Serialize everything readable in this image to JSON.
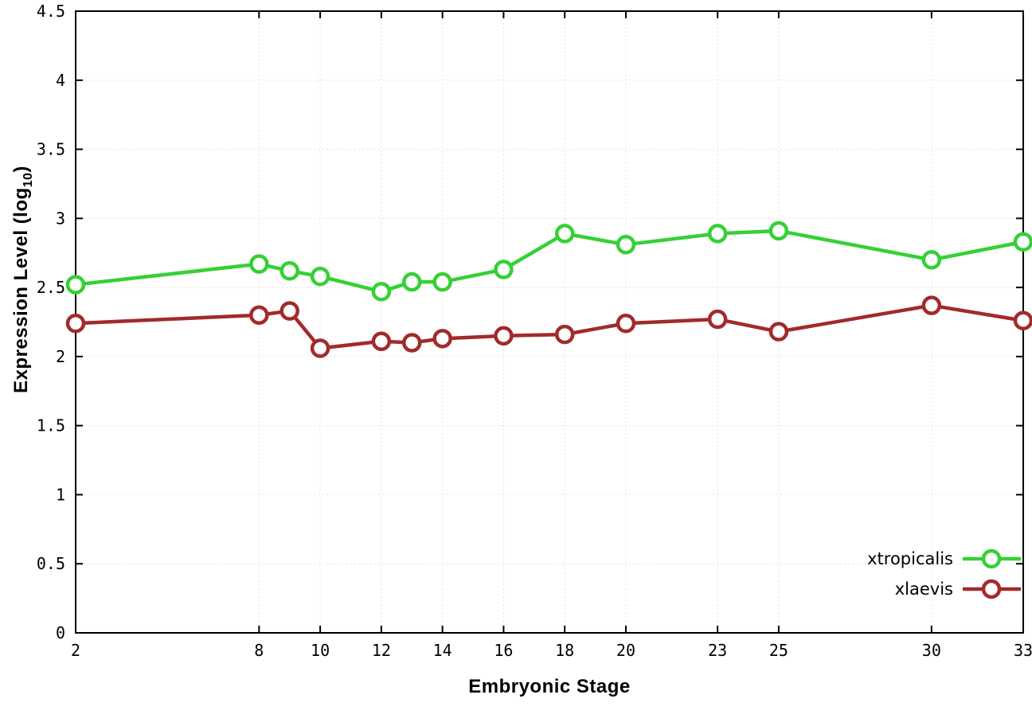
{
  "figure": {
    "xlabel": "Embryonic Stage",
    "ylabel_main": "Expression Level (log",
    "ylabel_sub": "10",
    "ylabel_close": ")"
  },
  "colors": {
    "background": "#ffffff",
    "frame": "#000000",
    "grid": "#e4e4e4",
    "xtropicalis": "#35d035",
    "xlaevis": "#a32a2a"
  },
  "chart_data": {
    "type": "line",
    "title": "",
    "xlabel": "Embryonic Stage",
    "ylabel": "Expression Level (log10)",
    "x": [
      2,
      8,
      9,
      10,
      12,
      13,
      14,
      16,
      18,
      20,
      23,
      25,
      30,
      33
    ],
    "series": [
      {
        "name": "xtropicalis",
        "color": "#35d035",
        "values": [
          2.52,
          2.67,
          2.62,
          2.58,
          2.47,
          2.54,
          2.54,
          2.63,
          2.89,
          2.81,
          2.89,
          2.91,
          2.7,
          2.83
        ]
      },
      {
        "name": "xlaevis",
        "color": "#a32a2a",
        "values": [
          2.24,
          2.3,
          2.33,
          2.06,
          2.11,
          2.1,
          2.13,
          2.15,
          2.16,
          2.24,
          2.27,
          2.18,
          2.37,
          2.26
        ]
      }
    ],
    "xlim": [
      2,
      33
    ],
    "ylim": [
      0,
      4.5
    ],
    "xticks": [
      2,
      8,
      10,
      12,
      14,
      16,
      18,
      20,
      23,
      25,
      30,
      33
    ],
    "xtick_labels": [
      "2",
      "8",
      "10",
      "12",
      "14",
      "16",
      "18",
      "20",
      "23",
      "25",
      "30",
      "33"
    ],
    "yticks": [
      0,
      0.5,
      1,
      1.5,
      2,
      2.5,
      3,
      3.5,
      4,
      4.5
    ],
    "ytick_labels": [
      "0",
      "0.5",
      "1",
      "1.5",
      "2",
      "2.5",
      "3",
      "3.5",
      "4",
      "4.5"
    ],
    "grid": true,
    "legend_position": "inside-bottom-right",
    "legend": [
      "xtropicalis",
      "xlaevis"
    ],
    "marker": "open-circle",
    "line_width": 4.5,
    "marker_radius": 10
  }
}
